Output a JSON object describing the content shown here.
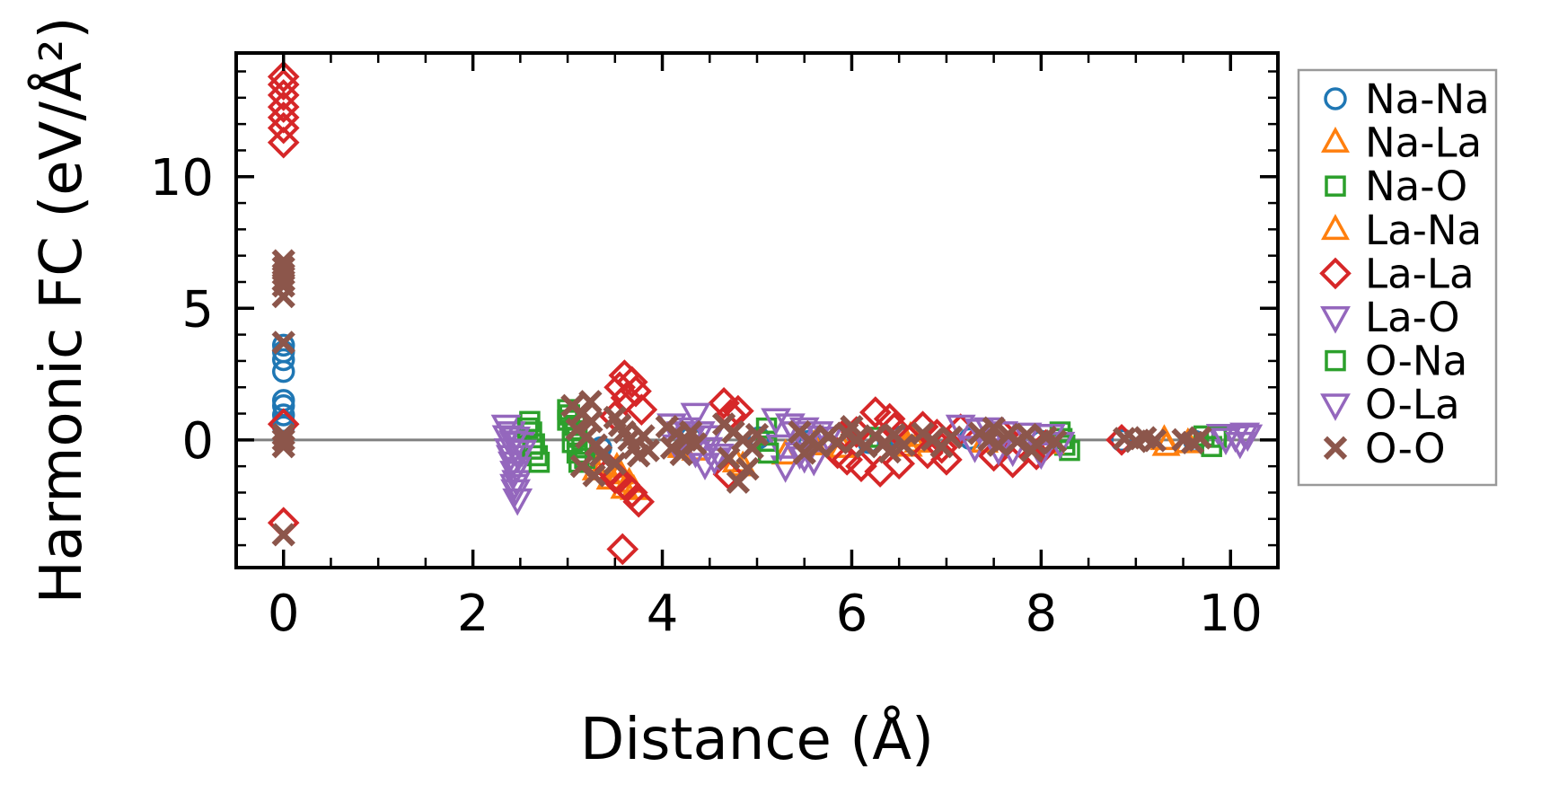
{
  "figure": {
    "title": "",
    "background": "#ffffff"
  },
  "chart_data": {
    "type": "scatter",
    "title": "",
    "xlabel": "Distance (Å)",
    "ylabel": "Harmonic FC (eV/Å²)",
    "xlim": [
      -0.5,
      10.5
    ],
    "ylim": [
      -4.85,
      14.7
    ],
    "x_ticks": [
      0,
      2,
      4,
      6,
      8,
      10
    ],
    "y_ticks": [
      0,
      5,
      10
    ],
    "x_minor_step": 0.5,
    "y_minor_step": 1,
    "grid": false,
    "zero_line": 0,
    "zero_line_color": "#808080",
    "legend_position": "right-outside",
    "legend_border_color": "#999999",
    "series": [
      {
        "name": "Na-Na",
        "marker": "circle",
        "color": "#1f77b4",
        "points": [
          [
            0,
            3.6
          ],
          [
            0,
            3.35
          ],
          [
            0,
            3.05
          ],
          [
            0,
            2.6
          ],
          [
            0,
            1.5
          ],
          [
            0,
            1.3
          ],
          [
            0,
            0.95
          ],
          [
            0,
            0.7
          ],
          [
            0,
            0.5
          ],
          [
            3.35,
            -0.3
          ],
          [
            4.3,
            0.1
          ],
          [
            5.02,
            0.08
          ],
          [
            5.55,
            -0.05
          ],
          [
            6.18,
            -0.1
          ],
          [
            6.5,
            0.1
          ],
          [
            7.25,
            0.05
          ],
          [
            8.0,
            -0.05
          ],
          [
            8.85,
            -0.02
          ],
          [
            9.62,
            -0.05
          ]
        ]
      },
      {
        "name": "Na-La",
        "marker": "triangle-up",
        "color": "#ff7f0e",
        "points": [
          [
            3.3,
            -1.15
          ],
          [
            3.45,
            -1.5
          ],
          [
            3.6,
            -1.85
          ],
          [
            3.52,
            -1.05
          ],
          [
            4.78,
            -0.85
          ],
          [
            5.3,
            -0.55
          ],
          [
            6.6,
            -0.25
          ],
          [
            6.62,
            0.12
          ],
          [
            9.3,
            0.0
          ],
          [
            5.6,
            -0.2
          ],
          [
            7.4,
            -0.1
          ],
          [
            4.2,
            -0.3
          ]
        ]
      },
      {
        "name": "Na-O",
        "marker": "square",
        "color": "#2ca02c",
        "points": [
          [
            2.6,
            0.7
          ],
          [
            2.62,
            0.3
          ],
          [
            2.65,
            -0.15
          ],
          [
            2.68,
            -0.6
          ],
          [
            3.0,
            1.15
          ],
          [
            3.0,
            0.75
          ],
          [
            3.05,
            0.35
          ],
          [
            3.05,
            -0.1
          ],
          [
            3.1,
            -0.5
          ],
          [
            3.12,
            -0.85
          ],
          [
            5.1,
            0.45
          ],
          [
            5.1,
            -0.05
          ],
          [
            8.2,
            0.3
          ],
          [
            8.25,
            -0.2
          ],
          [
            9.72,
            0.15
          ],
          [
            6.3,
            0.1
          ]
        ]
      },
      {
        "name": "La-Na",
        "marker": "triangle-up",
        "color": "#ff7f0e",
        "points": [
          [
            3.38,
            -0.95
          ],
          [
            3.55,
            -1.3
          ],
          [
            3.65,
            -1.62
          ],
          [
            3.7,
            -1.9
          ],
          [
            4.85,
            -1.0
          ],
          [
            6.7,
            -0.1
          ],
          [
            9.55,
            -0.12
          ],
          [
            9.32,
            -0.22
          ],
          [
            4.35,
            -0.4
          ],
          [
            5.9,
            -0.3
          ],
          [
            8.1,
            -0.15
          ]
        ]
      },
      {
        "name": "La-La",
        "marker": "diamond",
        "color": "#d62728",
        "points": [
          [
            0,
            13.8
          ],
          [
            0,
            13.5
          ],
          [
            0,
            13.1
          ],
          [
            0,
            12.65
          ],
          [
            0,
            12.25
          ],
          [
            0,
            11.85
          ],
          [
            0,
            11.3
          ],
          [
            0,
            0.6
          ],
          [
            0,
            -3.15
          ],
          [
            3.6,
            2.45
          ],
          [
            3.68,
            2.2
          ],
          [
            3.55,
            2.0
          ],
          [
            3.72,
            1.85
          ],
          [
            3.62,
            1.6
          ],
          [
            3.78,
            1.15
          ],
          [
            3.5,
            0.9
          ],
          [
            3.45,
            -1.15
          ],
          [
            3.5,
            -1.45
          ],
          [
            3.6,
            -1.7
          ],
          [
            3.68,
            -2.0
          ],
          [
            3.75,
            -2.35
          ],
          [
            3.58,
            -4.15
          ],
          [
            4.65,
            1.4
          ],
          [
            4.8,
            1.1
          ],
          [
            4.72,
            0.95
          ],
          [
            4.7,
            -1.3
          ],
          [
            5.85,
            -0.5
          ],
          [
            5.95,
            -0.75
          ],
          [
            6.1,
            -1.0
          ],
          [
            6.25,
            1.05
          ],
          [
            6.3,
            -1.2
          ],
          [
            6.4,
            0.8
          ],
          [
            6.45,
            0.45
          ],
          [
            6.5,
            -0.9
          ],
          [
            6.75,
            0.5
          ],
          [
            6.8,
            -0.5
          ],
          [
            6.9,
            0.2
          ],
          [
            6.95,
            -0.3
          ],
          [
            7.0,
            -0.75
          ],
          [
            7.15,
            0.4
          ],
          [
            7.5,
            -0.6
          ],
          [
            7.6,
            0.2
          ],
          [
            7.7,
            -0.85
          ],
          [
            7.95,
            -0.55
          ],
          [
            8.05,
            -0.2
          ],
          [
            8.85,
            0.0
          ],
          [
            6.05,
            0.3
          ],
          [
            5.9,
            0.15
          ]
        ]
      },
      {
        "name": "La-O",
        "marker": "triangle-down",
        "color": "#9467bd",
        "points": [
          [
            2.35,
            0.55
          ],
          [
            2.4,
            0.3
          ],
          [
            2.45,
            0.1
          ],
          [
            2.5,
            -0.1
          ],
          [
            2.38,
            -0.35
          ],
          [
            2.48,
            -0.6
          ],
          [
            2.42,
            -0.85
          ],
          [
            2.44,
            -1.2
          ],
          [
            2.46,
            -1.55
          ],
          [
            2.45,
            -1.9
          ],
          [
            2.47,
            -2.25
          ],
          [
            4.1,
            0.6
          ],
          [
            4.25,
            0.45
          ],
          [
            4.4,
            0.3
          ],
          [
            4.5,
            0.15
          ],
          [
            4.15,
            -0.2
          ],
          [
            4.35,
            -0.45
          ],
          [
            4.55,
            -0.7
          ],
          [
            4.45,
            -0.9
          ],
          [
            4.35,
            1.0
          ],
          [
            5.2,
            0.8
          ],
          [
            5.35,
            0.6
          ],
          [
            5.5,
            0.45
          ],
          [
            5.25,
            -0.2
          ],
          [
            5.45,
            -0.5
          ],
          [
            5.6,
            -0.75
          ],
          [
            5.3,
            -1.0
          ],
          [
            7.15,
            0.55
          ],
          [
            7.35,
            0.4
          ],
          [
            7.6,
            0.3
          ],
          [
            7.3,
            -0.25
          ],
          [
            7.7,
            -0.4
          ],
          [
            9.9,
            0.2
          ],
          [
            10.05,
            0.15
          ],
          [
            10.15,
            0.25
          ]
        ]
      },
      {
        "name": "O-Na",
        "marker": "square",
        "color": "#2ca02c",
        "points": [
          [
            2.58,
            0.45
          ],
          [
            2.63,
            -0.35
          ],
          [
            2.7,
            -0.85
          ],
          [
            3.02,
            0.95
          ],
          [
            3.08,
            0.55
          ],
          [
            3.1,
            0.1
          ],
          [
            3.15,
            -0.3
          ],
          [
            3.18,
            -0.7
          ],
          [
            5.12,
            -0.5
          ],
          [
            8.3,
            -0.4
          ],
          [
            8.22,
            0.05
          ],
          [
            9.8,
            -0.25
          ],
          [
            9.85,
            0.1
          ]
        ]
      },
      {
        "name": "O-La",
        "marker": "triangle-down",
        "color": "#9467bd",
        "points": [
          [
            2.36,
            0.15
          ],
          [
            2.43,
            -0.05
          ],
          [
            2.52,
            -0.4
          ],
          [
            2.4,
            -0.6
          ],
          [
            2.46,
            -1.05
          ],
          [
            2.44,
            -1.7
          ],
          [
            4.2,
            0.3
          ],
          [
            4.3,
            0.1
          ],
          [
            4.48,
            -0.3
          ],
          [
            4.6,
            -0.55
          ],
          [
            5.4,
            0.3
          ],
          [
            5.55,
            0.15
          ],
          [
            5.65,
            0.3
          ],
          [
            5.75,
            0.1
          ],
          [
            5.5,
            -0.65
          ],
          [
            7.45,
            0.45
          ],
          [
            7.85,
            0.25
          ],
          [
            8.1,
            0.2
          ],
          [
            8.0,
            -0.5
          ],
          [
            8.2,
            -0.1
          ],
          [
            7.55,
            -0.35
          ],
          [
            10.1,
            -0.1
          ],
          [
            9.95,
            0.05
          ],
          [
            10.18,
            0.18
          ]
        ]
      },
      {
        "name": "O-O",
        "marker": "x",
        "color": "#8c564b",
        "points": [
          [
            0,
            6.8
          ],
          [
            0,
            6.55
          ],
          [
            0,
            6.3
          ],
          [
            0,
            6.05
          ],
          [
            0,
            5.85
          ],
          [
            0,
            5.45
          ],
          [
            0,
            3.7
          ],
          [
            0,
            0.2
          ],
          [
            0,
            0.0
          ],
          [
            0,
            -0.25
          ],
          [
            0,
            -3.6
          ],
          [
            3.05,
            1.3
          ],
          [
            3.15,
            1.0
          ],
          [
            3.24,
            1.45
          ],
          [
            3.25,
            0.7
          ],
          [
            3.1,
            0.4
          ],
          [
            3.2,
            0.1
          ],
          [
            3.3,
            -0.2
          ],
          [
            3.35,
            -0.6
          ],
          [
            3.15,
            -1.0
          ],
          [
            3.28,
            -1.35
          ],
          [
            3.5,
            0.85
          ],
          [
            3.55,
            0.55
          ],
          [
            3.6,
            0.3
          ],
          [
            3.65,
            0.0
          ],
          [
            3.7,
            -0.3
          ],
          [
            3.75,
            -0.6
          ],
          [
            3.8,
            0.15
          ],
          [
            3.5,
            -0.9
          ],
          [
            3.85,
            -0.4
          ],
          [
            4.05,
            0.5
          ],
          [
            4.15,
            0.25
          ],
          [
            4.25,
            0.0
          ],
          [
            4.1,
            -0.3
          ],
          [
            4.2,
            -0.55
          ],
          [
            4.3,
            0.3
          ],
          [
            4.35,
            -0.15
          ],
          [
            4.65,
            0.6
          ],
          [
            4.75,
            0.3
          ],
          [
            4.85,
            0.0
          ],
          [
            4.95,
            -0.3
          ],
          [
            4.7,
            -0.7
          ],
          [
            4.9,
            -1.1
          ],
          [
            4.8,
            -1.6
          ],
          [
            5.0,
            0.2
          ],
          [
            5.45,
            0.3
          ],
          [
            5.5,
            -0.5
          ],
          [
            5.55,
            0.0
          ],
          [
            5.65,
            -0.25
          ],
          [
            5.75,
            0.15
          ],
          [
            5.85,
            -0.1
          ],
          [
            5.95,
            0.25
          ],
          [
            6.0,
            0.5
          ],
          [
            6.05,
            0.0
          ],
          [
            6.15,
            -0.25
          ],
          [
            6.25,
            0.15
          ],
          [
            6.35,
            -0.1
          ],
          [
            6.4,
            -0.45
          ],
          [
            6.45,
            0.2
          ],
          [
            6.55,
            -0.2
          ],
          [
            6.75,
            0.25
          ],
          [
            6.85,
            0.0
          ],
          [
            6.95,
            -0.25
          ],
          [
            7.05,
            0.1
          ],
          [
            7.35,
            0.25
          ],
          [
            7.45,
            0.0
          ],
          [
            7.5,
            0.45
          ],
          [
            7.55,
            -0.2
          ],
          [
            7.65,
            0.2
          ],
          [
            7.75,
            -0.05
          ],
          [
            7.85,
            0.2
          ],
          [
            7.9,
            -0.4
          ],
          [
            7.95,
            -0.15
          ],
          [
            8.05,
            0.1
          ],
          [
            8.15,
            -0.05
          ],
          [
            8.88,
            0.05
          ],
          [
            9.0,
            -0.05
          ],
          [
            9.1,
            0.08
          ],
          [
            9.2,
            -0.02
          ],
          [
            9.5,
            0.0
          ],
          [
            9.6,
            -0.1
          ],
          [
            9.68,
            0.08
          ]
        ]
      }
    ]
  }
}
